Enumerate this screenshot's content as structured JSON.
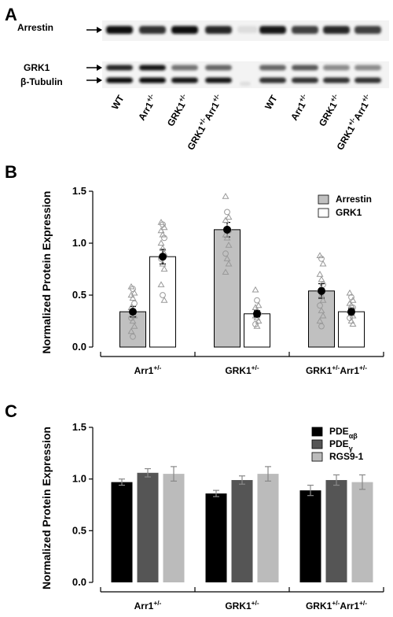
{
  "figure": {
    "panel_a": {
      "letter": "A",
      "band_labels": [
        "Arrestin",
        "GRK1",
        "β-Tubulin"
      ],
      "lanes": [
        [
          "WT",
          ""
        ],
        [
          "Arr1",
          "+/-"
        ],
        [
          "GRK1",
          "+/-"
        ],
        [
          "GRK1",
          "+/-",
          "Arr1",
          "+/-"
        ],
        [
          "WT",
          ""
        ],
        [
          "Arr1",
          "+/-"
        ],
        [
          "GRK1",
          "+/-"
        ],
        [
          "GRK1",
          "+/-",
          "Arr1",
          "+/-"
        ]
      ]
    },
    "panel_b": {
      "letter": "B"
    },
    "panel_c": {
      "letter": "C"
    }
  },
  "chart_data": [
    {
      "type": "bar",
      "ylabel": "Normalized Protein Expression",
      "ylim": [
        0,
        1.5
      ],
      "yticks": [
        "0.0",
        "0.5",
        "1.0",
        "1.5"
      ],
      "categories": [
        {
          "base": "Arr1",
          "sup": "+/-"
        },
        {
          "base": "GRK1",
          "sup": "+/-"
        },
        {
          "base": "GRK1",
          "sup": "+/-",
          "base2": "Arr1",
          "sup2": "+/-"
        }
      ],
      "series": [
        {
          "name": "Arrestin",
          "color": "#c0c0c0",
          "values": [
            0.34,
            1.13,
            0.54
          ],
          "errors": [
            0.05,
            0.07,
            0.07
          ]
        },
        {
          "name": "GRK1",
          "color": "#ffffff",
          "values": [
            0.87,
            0.32,
            0.34
          ],
          "errors": [
            0.07,
            0.03,
            0.03
          ]
        }
      ],
      "points": [
        [
          [
            0.58,
            0.56,
            0.52,
            0.5,
            0.47,
            0.42,
            0.38,
            0.35,
            0.3,
            0.28,
            0.25,
            0.2,
            0.15,
            0.1
          ],
          [
            1.2,
            1.18,
            1.15,
            1.12,
            1.08,
            1.05,
            1.0,
            0.95,
            0.9,
            0.85,
            0.8,
            0.75,
            0.6,
            0.5,
            0.45
          ]
        ],
        [
          [
            1.45,
            1.3,
            1.25,
            1.22,
            1.15,
            1.12,
            1.08,
            1.05,
            0.98,
            0.9,
            0.85,
            0.8,
            0.72
          ],
          [
            0.55,
            0.45,
            0.4,
            0.38,
            0.35,
            0.32,
            0.3,
            0.28,
            0.25,
            0.22,
            0.2
          ]
        ],
        [
          [
            0.88,
            0.85,
            0.8,
            0.7,
            0.65,
            0.6,
            0.55,
            0.5,
            0.45,
            0.4,
            0.35,
            0.3,
            0.25,
            0.2
          ],
          [
            0.52,
            0.48,
            0.45,
            0.42,
            0.4,
            0.38,
            0.35,
            0.32,
            0.3,
            0.28,
            0.25,
            0.22
          ]
        ]
      ]
    },
    {
      "type": "bar",
      "ylabel": "Normalized Protein Expression",
      "ylim": [
        0,
        1.5
      ],
      "yticks": [
        "0.0",
        "0.5",
        "1.0",
        "1.5"
      ],
      "categories": [
        {
          "base": "Arr1",
          "sup": "+/-"
        },
        {
          "base": "GRK1",
          "sup": "+/-"
        },
        {
          "base": "GRK1",
          "sup": "+/-",
          "base2": "Arr1",
          "sup2": "+/-"
        }
      ],
      "series": [
        {
          "name": "PDE",
          "sub": "αβ",
          "color": "#000000",
          "values": [
            0.97,
            0.86,
            0.89
          ],
          "errors": [
            0.03,
            0.03,
            0.05
          ]
        },
        {
          "name": "PDE",
          "sub": "γ",
          "color": "#555555",
          "values": [
            1.06,
            0.99,
            0.99
          ],
          "errors": [
            0.04,
            0.04,
            0.05
          ]
        },
        {
          "name": "RGS9-1",
          "color": "#bbbbbb",
          "values": [
            1.05,
            1.05,
            0.97
          ],
          "errors": [
            0.07,
            0.07,
            0.07
          ]
        }
      ]
    }
  ]
}
